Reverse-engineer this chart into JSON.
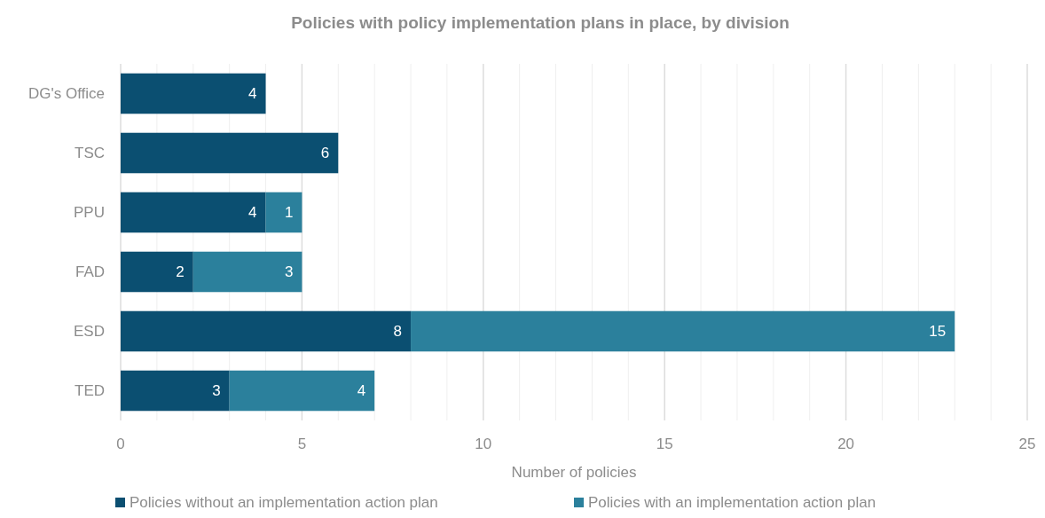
{
  "chart_data": {
    "type": "bar",
    "orientation": "horizontal",
    "stacked": true,
    "title": "Policies with policy implementation plans in place, by division",
    "xlabel": "Number of policies",
    "categories": [
      "DG's Office",
      "TSC",
      "PPU",
      "FAD",
      "ESD",
      "TED"
    ],
    "series": [
      {
        "name": "Policies without an implementation action plan",
        "color": "#0b4f71",
        "values": [
          4,
          6,
          4,
          2,
          8,
          3
        ]
      },
      {
        "name": "Policies with an implementation action plan",
        "color": "#2b809c",
        "values": [
          null,
          null,
          1,
          3,
          15,
          4
        ]
      }
    ],
    "xlim": [
      0,
      25
    ],
    "xticks": [
      0,
      {
        "value": 1,
        "label": null
      },
      {
        "value": 2,
        "label": null
      },
      {
        "value": 3,
        "label": null
      },
      {
        "value": 4,
        "label": null
      },
      5,
      {
        "value": 6,
        "label": null
      },
      {
        "value": 7,
        "label": null
      },
      {
        "value": 8,
        "label": null
      },
      {
        "value": 9,
        "label": null
      },
      10,
      {
        "value": 11,
        "label": null
      },
      {
        "value": 12,
        "label": null
      },
      {
        "value": 13,
        "label": null
      },
      {
        "value": 14,
        "label": null
      },
      15,
      {
        "value": 16,
        "label": null
      },
      {
        "value": 17,
        "label": null
      },
      {
        "value": 18,
        "label": null
      },
      {
        "value": 19,
        "label": null
      },
      20,
      {
        "value": 21,
        "label": null
      },
      {
        "value": 22,
        "label": null
      },
      {
        "value": 23,
        "label": null
      },
      {
        "value": 24,
        "label": null
      },
      25
    ],
    "grid": "x",
    "legend": "bottom",
    "data_labels": true
  }
}
